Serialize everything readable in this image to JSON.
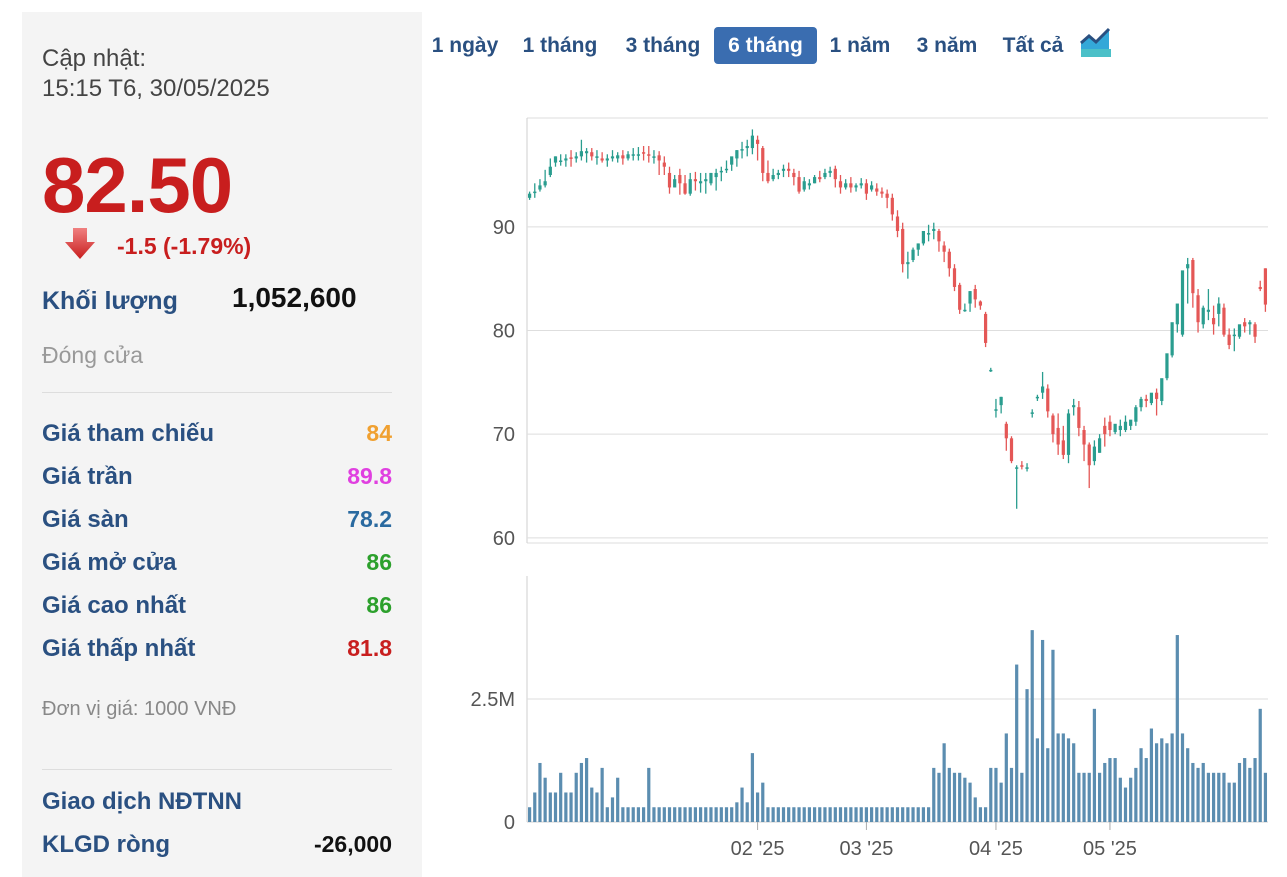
{
  "left_panel": {
    "update_label": "Cập nhật:",
    "update_time": "15:15 T6, 30/05/2025",
    "price": "82.50",
    "change": "-1.5 (-1.79%)",
    "volume_label": "Khối lượng",
    "volume_value": "1,052,600",
    "status": "Đóng cửa",
    "stats": [
      {
        "label": "Giá tham chiếu",
        "value": "84",
        "color": "#f0a030"
      },
      {
        "label": "Giá trần",
        "value": "89.8",
        "color": "#e040e0"
      },
      {
        "label": "Giá sàn",
        "value": "78.2",
        "color": "#2a6aa0"
      },
      {
        "label": "Giá mở cửa",
        "value": "86",
        "color": "#2ca02c"
      },
      {
        "label": "Giá cao nhất",
        "value": "86",
        "color": "#2ca02c"
      },
      {
        "label": "Giá thấp nhất",
        "value": "81.8",
        "color": "#c81e1e"
      }
    ],
    "unit_note": "Đơn vị giá: 1000 VNĐ",
    "foreign_title": "Giao dịch NĐTNN",
    "net_label": "KLGD ròng",
    "net_value": "-26,000"
  },
  "range_buttons": [
    "1 ngày",
    "1 tháng",
    "3 tháng",
    "6 tháng",
    "1 năm",
    "3 năm",
    "Tất cả"
  ],
  "active_range": "6 tháng",
  "colors": {
    "up": "#2a9d8f",
    "down": "#e45756",
    "volume": "#5b8db0",
    "accent": "#3a6db0"
  },
  "chart_data": {
    "type": "candlestick",
    "price_axis": {
      "ticks": [
        60,
        70,
        80,
        90
      ],
      "ylim": [
        59.5,
        100.5
      ]
    },
    "volume_axis": {
      "ticks": [
        0,
        2500000
      ],
      "tick_labels": [
        "0",
        "2.5M"
      ],
      "ylim": [
        0,
        5000000
      ]
    },
    "x_ticks": [
      {
        "label": "02 '25",
        "index": 44
      },
      {
        "label": "03 '25",
        "index": 65
      },
      {
        "label": "04 '25",
        "index": 90
      },
      {
        "label": "05 '25",
        "index": 112
      }
    ],
    "candles": [
      [
        92.8,
        93.4,
        93.2,
        92.6
      ],
      [
        93.4,
        94.2,
        93.4,
        92.8
      ],
      [
        93.6,
        94.6,
        94.0,
        93.4
      ],
      [
        94.0,
        95.5,
        94.4,
        93.8
      ],
      [
        95.0,
        96.6,
        95.8,
        94.8
      ],
      [
        96.2,
        96.8,
        96.8,
        95.8
      ],
      [
        96.4,
        97.0,
        96.4,
        95.9
      ],
      [
        96.4,
        97.0,
        96.6,
        95.8
      ],
      [
        96.7,
        97.4,
        96.6,
        95.8
      ],
      [
        96.6,
        97.2,
        96.8,
        96.2
      ],
      [
        96.8,
        98.4,
        97.3,
        96.4
      ],
      [
        97.1,
        97.6,
        97.3,
        96.2
      ],
      [
        97.2,
        97.6,
        96.8,
        96.4
      ],
      [
        96.8,
        97.4,
        96.8,
        96.0
      ],
      [
        96.6,
        97.2,
        96.4,
        96.2
      ],
      [
        96.4,
        97.0,
        96.6,
        95.8
      ],
      [
        96.6,
        97.4,
        96.8,
        96.3
      ],
      [
        96.6,
        97.2,
        96.9,
        96.2
      ],
      [
        96.9,
        97.4,
        96.6,
        96.0
      ],
      [
        96.6,
        97.3,
        97.0,
        96.4
      ],
      [
        97.0,
        97.6,
        97.0,
        96.4
      ],
      [
        97.0,
        97.7,
        97.0,
        96.4
      ],
      [
        97.2,
        97.8,
        97.1,
        96.4
      ],
      [
        97.0,
        97.8,
        96.9,
        96.2
      ],
      [
        96.8,
        97.4,
        96.8,
        96.1
      ],
      [
        96.9,
        97.3,
        96.4,
        95.0
      ],
      [
        96.2,
        96.8,
        95.8,
        95.0
      ],
      [
        95.2,
        95.8,
        93.8,
        93.2
      ],
      [
        93.8,
        95.0,
        94.6,
        93.8
      ],
      [
        95.0,
        95.6,
        94.2,
        93.1
      ],
      [
        94.2,
        95.0,
        93.2,
        93.1
      ],
      [
        93.2,
        95.2,
        94.6,
        93.0
      ],
      [
        94.6,
        95.3,
        94.4,
        93.5
      ],
      [
        94.2,
        95.2,
        94.4,
        93.3
      ],
      [
        94.4,
        95.2,
        94.6,
        93.2
      ],
      [
        94.2,
        95.2,
        95.2,
        94.0
      ],
      [
        94.8,
        95.6,
        95.2,
        93.5
      ],
      [
        95.4,
        95.8,
        95.4,
        94.4
      ],
      [
        95.6,
        96.4,
        95.6,
        95.2
      ],
      [
        96.0,
        96.6,
        96.8,
        95.4
      ],
      [
        96.6,
        97.4,
        97.4,
        95.8
      ],
      [
        97.4,
        98.2,
        97.5,
        96.6
      ],
      [
        97.6,
        98.4,
        97.8,
        96.8
      ],
      [
        97.6,
        99.4,
        98.8,
        97.0
      ],
      [
        98.4,
        98.8,
        98.0,
        96.4
      ],
      [
        97.6,
        97.8,
        95.2,
        94.4
      ],
      [
        95.2,
        96.4,
        94.4,
        94.2
      ],
      [
        94.6,
        95.6,
        95.0,
        94.4
      ],
      [
        95.0,
        95.5,
        95.2,
        94.6
      ],
      [
        95.4,
        96.0,
        95.6,
        94.8
      ],
      [
        95.6,
        96.2,
        95.4,
        94.8
      ],
      [
        95.2,
        95.6,
        94.8,
        94.0
      ],
      [
        94.8,
        95.4,
        93.4,
        93.2
      ],
      [
        93.6,
        94.8,
        94.4,
        93.4
      ],
      [
        94.0,
        94.6,
        94.2,
        93.6
      ],
      [
        94.2,
        95.0,
        94.8,
        94.2
      ],
      [
        94.8,
        95.4,
        94.6,
        94.3
      ],
      [
        94.8,
        95.6,
        95.2,
        94.6
      ],
      [
        95.2,
        95.8,
        95.4,
        94.8
      ],
      [
        95.6,
        95.9,
        94.6,
        93.8
      ],
      [
        94.4,
        95.0,
        93.8,
        93.2
      ],
      [
        93.8,
        94.6,
        94.2,
        93.6
      ],
      [
        94.2,
        94.8,
        93.8,
        93.3
      ],
      [
        93.8,
        94.2,
        94.0,
        93.4
      ],
      [
        94.0,
        94.7,
        94.2,
        93.7
      ],
      [
        94.2,
        94.6,
        93.2,
        92.6
      ],
      [
        93.6,
        94.4,
        94.0,
        93.4
      ],
      [
        93.7,
        94.2,
        93.4,
        93.0
      ],
      [
        93.4,
        93.8,
        93.2,
        92.8
      ],
      [
        93.2,
        93.6,
        92.8,
        91.8
      ],
      [
        92.8,
        93.2,
        91.2,
        90.6
      ],
      [
        91.0,
        91.6,
        89.6,
        89.0
      ],
      [
        89.8,
        90.4,
        86.4,
        85.6
      ],
      [
        86.4,
        87.6,
        86.6,
        85.0
      ],
      [
        86.8,
        88.0,
        87.8,
        86.6
      ],
      [
        87.8,
        88.4,
        88.4,
        87.2
      ],
      [
        88.4,
        89.6,
        89.6,
        88.2
      ],
      [
        89.4,
        90.2,
        89.4,
        88.6
      ],
      [
        89.6,
        90.4,
        89.8,
        88.8
      ],
      [
        89.6,
        89.8,
        88.6,
        87.6
      ],
      [
        88.2,
        88.6,
        87.6,
        86.6
      ],
      [
        87.6,
        87.9,
        86.0,
        85.2
      ],
      [
        86.0,
        86.4,
        84.2,
        83.8
      ],
      [
        84.4,
        84.6,
        82.0,
        81.6
      ],
      [
        82.0,
        82.6,
        82.0,
        81.8
      ],
      [
        82.6,
        83.8,
        83.8,
        81.8
      ],
      [
        84.0,
        84.4,
        83.0,
        82.2
      ],
      [
        82.8,
        82.9,
        82.4,
        82.0
      ],
      [
        81.6,
        81.8,
        78.8,
        78.4
      ],
      [
        76.2,
        76.4,
        76.2,
        76.0
      ],
      [
        72.4,
        73.4,
        72.4,
        71.6
      ],
      [
        72.8,
        73.6,
        73.6,
        72.0
      ],
      [
        71.0,
        71.2,
        69.6,
        68.4
      ],
      [
        69.6,
        69.8,
        67.4,
        67.2
      ],
      [
        66.8,
        67.0,
        66.8,
        62.8
      ],
      [
        67.0,
        67.4,
        66.9,
        66.6
      ],
      [
        66.8,
        67.2,
        66.8,
        66.4
      ],
      [
        72.0,
        72.4,
        72.1,
        71.6
      ],
      [
        73.6,
        73.8,
        73.6,
        73.2
      ],
      [
        74.0,
        76.0,
        74.6,
        73.4
      ],
      [
        74.4,
        74.8,
        72.2,
        71.6
      ],
      [
        71.8,
        72.0,
        70.0,
        69.2
      ],
      [
        70.6,
        72.0,
        69.0,
        68.0
      ],
      [
        69.4,
        70.8,
        68.0,
        67.6
      ],
      [
        68.0,
        72.4,
        72.0,
        67.2
      ],
      [
        72.6,
        73.4,
        72.8,
        71.8
      ],
      [
        72.6,
        73.2,
        70.6,
        69.8
      ],
      [
        70.4,
        70.8,
        69.0,
        67.4
      ],
      [
        69.0,
        69.2,
        67.0,
        64.8
      ],
      [
        67.4,
        69.4,
        68.8,
        67.0
      ],
      [
        68.2,
        70.0,
        69.6,
        68.2
      ],
      [
        70.8,
        71.6,
        70.0,
        68.8
      ],
      [
        71.2,
        71.8,
        70.4,
        69.8
      ],
      [
        70.2,
        70.8,
        71.0,
        70.0
      ],
      [
        70.4,
        71.4,
        70.8,
        69.8
      ],
      [
        70.4,
        71.8,
        71.2,
        70.2
      ],
      [
        70.8,
        71.2,
        71.4,
        70.4
      ],
      [
        71.2,
        72.8,
        72.6,
        70.8
      ],
      [
        72.6,
        73.6,
        73.4,
        72.2
      ],
      [
        73.4,
        73.8,
        73.2,
        72.6
      ],
      [
        73.0,
        73.6,
        74.0,
        72.8
      ],
      [
        74.0,
        74.4,
        73.4,
        71.8
      ],
      [
        73.2,
        74.8,
        75.4,
        72.8
      ],
      [
        75.4,
        76.8,
        77.8,
        75.2
      ],
      [
        77.6,
        79.4,
        80.8,
        77.4
      ],
      [
        80.6,
        82.4,
        82.6,
        79.8
      ],
      [
        79.6,
        82.8,
        85.8,
        79.4
      ],
      [
        86.0,
        87.0,
        86.4,
        82.6
      ],
      [
        86.8,
        87.0,
        83.6,
        82.2
      ],
      [
        83.4,
        84.0,
        80.8,
        79.8
      ],
      [
        80.6,
        82.4,
        82.2,
        80.2
      ],
      [
        81.8,
        84.0,
        82.0,
        81.0
      ],
      [
        81.2,
        82.4,
        80.6,
        79.6
      ],
      [
        81.6,
        83.2,
        82.6,
        80.4
      ],
      [
        82.2,
        82.6,
        79.6,
        79.4
      ],
      [
        79.6,
        80.2,
        78.6,
        78.2
      ],
      [
        79.6,
        80.2,
        79.6,
        78.0
      ],
      [
        79.4,
        80.4,
        80.6,
        79.2
      ],
      [
        80.8,
        81.2,
        80.4,
        79.8
      ],
      [
        80.6,
        81.0,
        80.8,
        79.6
      ],
      [
        80.6,
        80.8,
        79.4,
        78.8
      ],
      [
        84.2,
        84.8,
        84.0,
        83.8
      ],
      [
        86.0,
        86.0,
        82.5,
        81.8
      ]
    ],
    "volumes": [
      300000,
      600000,
      1200000,
      900000,
      600000,
      600000,
      1000000,
      600000,
      600000,
      1000000,
      1200000,
      1300000,
      700000,
      600000,
      1100000,
      300000,
      500000,
      900000,
      300000,
      300000,
      300000,
      300000,
      300000,
      1100000,
      300000,
      300000,
      300000,
      300000,
      300000,
      300000,
      300000,
      300000,
      300000,
      300000,
      300000,
      300000,
      300000,
      300000,
      300000,
      300000,
      400000,
      700000,
      400000,
      1400000,
      600000,
      800000,
      300000,
      300000,
      300000,
      300000,
      300000,
      300000,
      300000,
      300000,
      300000,
      300000,
      300000,
      300000,
      300000,
      300000,
      300000,
      300000,
      300000,
      300000,
      300000,
      300000,
      300000,
      300000,
      300000,
      300000,
      300000,
      300000,
      300000,
      300000,
      300000,
      300000,
      300000,
      300000,
      1100000,
      1000000,
      1600000,
      1100000,
      1000000,
      1000000,
      900000,
      800000,
      500000,
      300000,
      300000,
      1100000,
      1100000,
      800000,
      1800000,
      1100000,
      3200000,
      1000000,
      2700000,
      3900000,
      1700000,
      3700000,
      1500000,
      3500000,
      1800000,
      1800000,
      1700000,
      1600000,
      1000000,
      1000000,
      1000000,
      2300000,
      1000000,
      1200000,
      1300000,
      1300000,
      900000,
      700000,
      900000,
      1100000,
      1500000,
      1300000,
      1900000,
      1600000,
      1700000,
      1600000,
      1800000,
      3800000,
      1800000,
      1500000,
      1200000,
      1100000,
      1200000,
      1000000,
      1000000,
      1000000,
      1000000,
      800000,
      800000,
      1200000,
      1300000,
      1100000,
      1300000,
      2300000,
      1000000
    ]
  }
}
